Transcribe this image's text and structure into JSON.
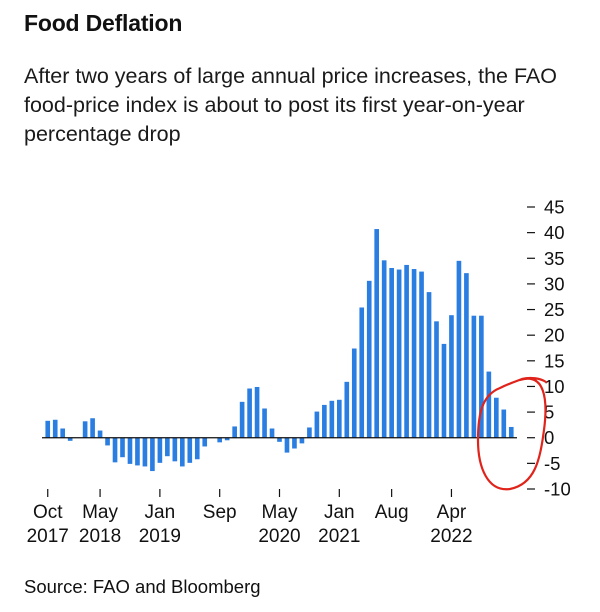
{
  "header": {
    "title": "Food Deflation",
    "subtitle": "After two years of large annual price increases, the FAO food-price index is about to post its first year-on-year percentage drop"
  },
  "footer": {
    "source": "Source: FAO and Bloomberg"
  },
  "chart_data": {
    "type": "bar",
    "title": "Food Deflation",
    "ylabel": "",
    "xlabel": "",
    "ylim": [
      -10,
      45
    ],
    "yticks": [
      45,
      40,
      35,
      30,
      25,
      20,
      15,
      10,
      5,
      0,
      -5,
      -10
    ],
    "ytick_labels": [
      "45",
      "40",
      "35",
      "30",
      "25",
      "20",
      "15",
      "10",
      "5",
      "0",
      "-5",
      "-10"
    ],
    "x_ticks": [
      {
        "index": 0,
        "line1": "Oct",
        "line2": "2017"
      },
      {
        "index": 7,
        "line1": "May",
        "line2": "2018"
      },
      {
        "index": 15,
        "line1": "Jan",
        "line2": "2019"
      },
      {
        "index": 23,
        "line1": "Sep",
        "line2": ""
      },
      {
        "index": 31,
        "line1": "May",
        "line2": "2020"
      },
      {
        "index": 39,
        "line1": "Jan",
        "line2": "2021"
      },
      {
        "index": 46,
        "line1": "Aug",
        "line2": ""
      },
      {
        "index": 54,
        "line1": "Apr",
        "line2": "2022"
      }
    ],
    "series": [
      {
        "name": "FAO food-price index, YoY % change",
        "color": "#2a7de1",
        "values": [
          3.3,
          3.5,
          1.8,
          -0.6,
          0,
          3.2,
          3.8,
          1.4,
          -1.5,
          -4.8,
          -3.8,
          -5.1,
          -5.4,
          -5.6,
          -6.5,
          -4.9,
          -3.6,
          -4.6,
          -5.6,
          -4.9,
          -4.2,
          -1.7,
          0,
          -0.9,
          -0.5,
          2.2,
          7.0,
          9.6,
          9.9,
          5.7,
          1.8,
          -0.8,
          -2.9,
          -2.1,
          -1.1,
          2.0,
          5.1,
          6.4,
          7.2,
          7.4,
          10.9,
          17.4,
          25.4,
          30.6,
          40.7,
          34.6,
          33.1,
          32.8,
          33.7,
          32.9,
          32.4,
          28.4,
          22.7,
          18.3,
          23.9,
          34.5,
          32.1,
          23.8,
          23.8,
          12.9,
          7.8,
          5.5,
          2.1
        ]
      }
    ],
    "annotation": "hand-drawn red circle around the last bars"
  }
}
